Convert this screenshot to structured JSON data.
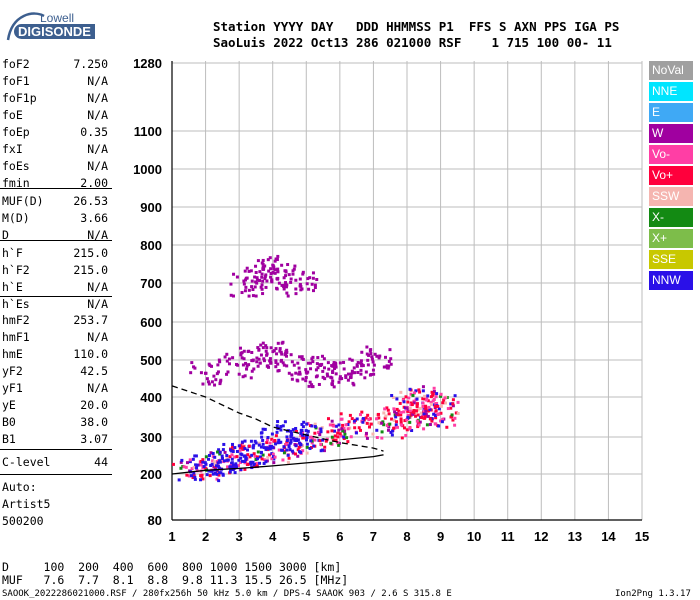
{
  "logo": {
    "top": "Lowell",
    "bottom": "DIGISONDE"
  },
  "header": {
    "line1": "Station YYYY DAY   DDD HHMMSS P1  FFS S AXN PPS IGA PS",
    "line2": "SaoLuis 2022 Oct13 286 021000 RSF    1 715 100 00- 11"
  },
  "params": {
    "group1": [
      {
        "k": "foF2",
        "v": "7.250"
      },
      {
        "k": "foF1",
        "v": "N/A"
      },
      {
        "k": "foF1p",
        "v": "N/A"
      },
      {
        "k": "foE",
        "v": "N/A"
      },
      {
        "k": "foEp",
        "v": "0.35"
      },
      {
        "k": "fxI",
        "v": "N/A"
      },
      {
        "k": "foEs",
        "v": "N/A"
      },
      {
        "k": "fmin",
        "v": "2.00"
      }
    ],
    "group2": [
      {
        "k": "MUF(D)",
        "v": "26.53"
      },
      {
        "k": "M(D)",
        "v": "3.66"
      },
      {
        "k": "D",
        "v": "N/A"
      }
    ],
    "group3": [
      {
        "k": "h`F",
        "v": "215.0"
      },
      {
        "k": "h`F2",
        "v": "215.0"
      },
      {
        "k": "h`E",
        "v": "N/A"
      },
      {
        "k": "h`Es",
        "v": "N/A"
      }
    ],
    "group4": [
      {
        "k": "hmF2",
        "v": "253.7"
      },
      {
        "k": "hmF1",
        "v": "N/A"
      },
      {
        "k": "hmE",
        "v": "110.0"
      },
      {
        "k": "yF2",
        "v": "42.5"
      },
      {
        "k": "yF1",
        "v": "N/A"
      },
      {
        "k": "yE",
        "v": "20.0"
      },
      {
        "k": "B0",
        "v": "38.0"
      },
      {
        "k": "B1",
        "v": "3.07"
      }
    ],
    "group5": [
      {
        "k": "C-level",
        "v": "44"
      }
    ]
  },
  "autoscale": {
    "line1": "Auto:",
    "line2": "Artist5",
    "line3": "500200"
  },
  "footer": {
    "d_row": "D     100  200  400  600  800 1000 1500 3000 [km]",
    "muf_row": "MUF   7.6  7.7  8.1  8.8  9.8 11.3 15.5 26.5 [MHz]",
    "file_line": "SAOOK_2022286021000.RSF / 280fx256h 50 kHz 5.0 km / DPS-4 SAAOK 903 / 2.6 S 315.8 E",
    "version": "Ion2Png 1.3.17"
  },
  "legend": [
    {
      "label": "NoVal",
      "color": "#a0a0a0"
    },
    {
      "label": "NNE",
      "color": "#00e5ff"
    },
    {
      "label": "E",
      "color": "#3fa9f5"
    },
    {
      "label": "W",
      "color": "#a000a0"
    },
    {
      "label": "Vo-",
      "color": "#ff3ea5"
    },
    {
      "label": "Vo+",
      "color": "#ff003c"
    },
    {
      "label": "SSW",
      "color": "#f5b5b0"
    },
    {
      "label": "X-",
      "color": "#138a13"
    },
    {
      "label": "X+",
      "color": "#7dbd4a"
    },
    {
      "label": "SSE",
      "color": "#c8c800"
    },
    {
      "label": "NNW",
      "color": "#2a10e8"
    }
  ],
  "chart_data": {
    "type": "scatter",
    "title": "",
    "xlabel": "",
    "ylabel": "",
    "x_ticks": [
      1,
      2,
      3,
      4,
      5,
      6,
      7,
      8,
      9,
      10,
      11,
      12,
      13,
      14,
      15
    ],
    "y_ticks": [
      80,
      200,
      300,
      400,
      500,
      600,
      700,
      800,
      900,
      1000,
      1100,
      1280
    ],
    "xlim": [
      1,
      15
    ],
    "ylim": [
      80,
      1280
    ],
    "grid": true,
    "legend_position": "right",
    "series": [
      {
        "name": "Vo+",
        "points": [
          [
            1.5,
            215
          ],
          [
            2.0,
            225
          ],
          [
            2.5,
            235
          ],
          [
            3.0,
            245
          ],
          [
            3.5,
            255
          ],
          [
            4.0,
            268
          ],
          [
            4.5,
            282
          ],
          [
            5.0,
            295
          ],
          [
            5.5,
            305
          ],
          [
            6.0,
            318
          ],
          [
            6.5,
            330
          ],
          [
            7.0,
            345
          ],
          [
            7.5,
            330
          ],
          [
            8.0,
            350
          ],
          [
            8.5,
            360
          ],
          [
            9.0,
            375
          ]
        ]
      },
      {
        "name": "NNW",
        "points": [
          [
            2.0,
            220
          ],
          [
            2.5,
            235
          ],
          [
            3.0,
            250
          ],
          [
            3.5,
            265
          ],
          [
            4.0,
            300
          ],
          [
            4.5,
            310
          ],
          [
            5.0,
            300
          ]
        ]
      },
      {
        "name": "W",
        "points": [
          [
            2.0,
            470
          ],
          [
            3.0,
            490
          ],
          [
            3.5,
            510
          ],
          [
            4.0,
            520
          ],
          [
            4.5,
            500
          ],
          [
            5.0,
            480
          ],
          [
            5.5,
            465
          ],
          [
            6.0,
            470
          ],
          [
            6.5,
            490
          ],
          [
            7.0,
            510
          ]
        ]
      },
      {
        "name": "Vo-",
        "points": [
          [
            7.8,
            370
          ],
          [
            8.0,
            390
          ],
          [
            8.3,
            400
          ],
          [
            8.6,
            380
          ],
          [
            9.0,
            360
          ]
        ]
      },
      {
        "name": "W-upper",
        "points": [
          [
            3.2,
            700
          ],
          [
            3.6,
            720
          ],
          [
            4.0,
            740
          ],
          [
            4.4,
            720
          ],
          [
            4.8,
            700
          ]
        ]
      }
    ],
    "traces": {
      "solid": [
        [
          1,
          200
        ],
        [
          2,
          210
        ],
        [
          3,
          215
        ],
        [
          4,
          222
        ],
        [
          5,
          230
        ],
        [
          6,
          238
        ],
        [
          7,
          247
        ],
        [
          7.3,
          252
        ]
      ],
      "dashed": [
        [
          1,
          430
        ],
        [
          2,
          400
        ],
        [
          3,
          360
        ],
        [
          3.5,
          345
        ],
        [
          4,
          325
        ],
        [
          5,
          305
        ],
        [
          6,
          285
        ],
        [
          7,
          270
        ],
        [
          7.3,
          262
        ]
      ]
    }
  }
}
